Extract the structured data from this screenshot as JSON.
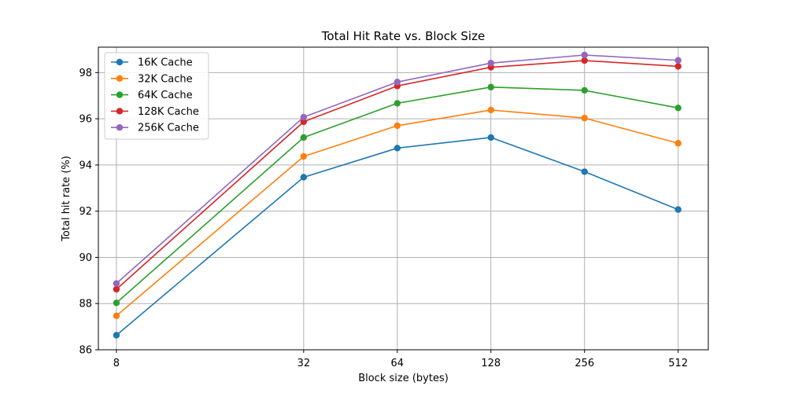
{
  "chart_data": {
    "type": "line",
    "title": "Total Hit Rate vs. Block Size",
    "xlabel": "Block size (bytes)",
    "ylabel": "Total hit rate (%)",
    "xscale": "log2",
    "xlim": [
      7.0,
      640
    ],
    "ylim": [
      86,
      99.1
    ],
    "x": [
      8,
      32,
      64,
      128,
      256,
      512
    ],
    "x_tick_labels": [
      "8",
      "32",
      "64",
      "128",
      "256",
      "512"
    ],
    "y_ticks": [
      86,
      88,
      90,
      92,
      94,
      96,
      98
    ],
    "grid": true,
    "legend_position": "top-left",
    "series": [
      {
        "name": "16K Cache",
        "color": "#1f77b4",
        "values": [
          86.63,
          93.47,
          94.73,
          95.19,
          93.71,
          92.07
        ]
      },
      {
        "name": "32K Cache",
        "color": "#ff7f0e",
        "values": [
          87.47,
          94.37,
          95.7,
          96.38,
          96.03,
          94.94
        ]
      },
      {
        "name": "64K Cache",
        "color": "#2ca02c",
        "values": [
          88.03,
          95.19,
          96.67,
          97.37,
          97.23,
          96.47
        ]
      },
      {
        "name": "128K Cache",
        "color": "#d62728",
        "values": [
          88.62,
          95.87,
          97.42,
          98.23,
          98.52,
          98.27
        ]
      },
      {
        "name": "256K Cache",
        "color": "#9467bd",
        "values": [
          88.87,
          96.07,
          97.59,
          98.41,
          98.76,
          98.53
        ]
      }
    ]
  }
}
